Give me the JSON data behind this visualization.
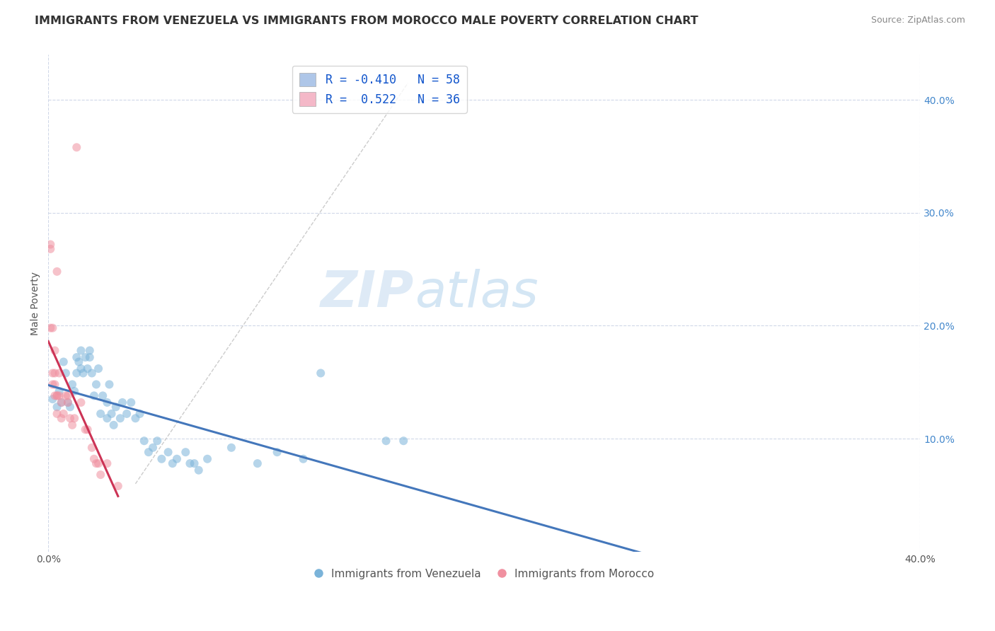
{
  "title": "IMMIGRANTS FROM VENEZUELA VS IMMIGRANTS FROM MOROCCO MALE POVERTY CORRELATION CHART",
  "source": "Source: ZipAtlas.com",
  "ylabel": "Male Poverty",
  "watermark_zip": "ZIP",
  "watermark_atlas": "atlas",
  "legend_entries": [
    {
      "label": "R = -0.410   N = 58",
      "color": "#aec6e8"
    },
    {
      "label": "R =  0.522   N = 36",
      "color": "#f4b8c8"
    }
  ],
  "legend_labels_bottom": [
    "Immigrants from Venezuela",
    "Immigrants from Morocco"
  ],
  "xlim": [
    0.0,
    0.4
  ],
  "ylim": [
    0.0,
    0.44
  ],
  "xticks": [
    0.0,
    0.1,
    0.2,
    0.3,
    0.4
  ],
  "xtick_labels": [
    "0.0%",
    "",
    "",
    "",
    "40.0%"
  ],
  "yticks_right": [
    0.1,
    0.2,
    0.3,
    0.4
  ],
  "ytick_labels_right": [
    "10.0%",
    "20.0%",
    "30.0%",
    "40.0%"
  ],
  "blue_color": "#7ab3d9",
  "pink_color": "#f090a0",
  "trend_blue": "#4477bb",
  "trend_pink": "#cc3355",
  "diag_color": "#cccccc",
  "title_fontsize": 11.5,
  "axis_label_fontsize": 10,
  "tick_fontsize": 10,
  "watermark_fontsize_zip": 52,
  "watermark_fontsize_atlas": 52,
  "background_color": "#ffffff",
  "grid_color": "#d0d8e8",
  "venezuela_scatter": [
    [
      0.002,
      0.135
    ],
    [
      0.004,
      0.128
    ],
    [
      0.005,
      0.142
    ],
    [
      0.006,
      0.132
    ],
    [
      0.007,
      0.168
    ],
    [
      0.008,
      0.158
    ],
    [
      0.009,
      0.132
    ],
    [
      0.01,
      0.128
    ],
    [
      0.011,
      0.148
    ],
    [
      0.012,
      0.142
    ],
    [
      0.013,
      0.158
    ],
    [
      0.013,
      0.172
    ],
    [
      0.014,
      0.168
    ],
    [
      0.015,
      0.178
    ],
    [
      0.015,
      0.162
    ],
    [
      0.016,
      0.158
    ],
    [
      0.017,
      0.172
    ],
    [
      0.018,
      0.162
    ],
    [
      0.019,
      0.172
    ],
    [
      0.019,
      0.178
    ],
    [
      0.02,
      0.158
    ],
    [
      0.021,
      0.138
    ],
    [
      0.022,
      0.148
    ],
    [
      0.023,
      0.162
    ],
    [
      0.024,
      0.122
    ],
    [
      0.025,
      0.138
    ],
    [
      0.027,
      0.132
    ],
    [
      0.027,
      0.118
    ],
    [
      0.028,
      0.148
    ],
    [
      0.029,
      0.122
    ],
    [
      0.03,
      0.112
    ],
    [
      0.031,
      0.128
    ],
    [
      0.033,
      0.118
    ],
    [
      0.034,
      0.132
    ],
    [
      0.036,
      0.122
    ],
    [
      0.038,
      0.132
    ],
    [
      0.04,
      0.118
    ],
    [
      0.042,
      0.122
    ],
    [
      0.044,
      0.098
    ],
    [
      0.046,
      0.088
    ],
    [
      0.048,
      0.092
    ],
    [
      0.05,
      0.098
    ],
    [
      0.052,
      0.082
    ],
    [
      0.055,
      0.088
    ],
    [
      0.057,
      0.078
    ],
    [
      0.059,
      0.082
    ],
    [
      0.063,
      0.088
    ],
    [
      0.065,
      0.078
    ],
    [
      0.067,
      0.078
    ],
    [
      0.069,
      0.072
    ],
    [
      0.073,
      0.082
    ],
    [
      0.084,
      0.092
    ],
    [
      0.096,
      0.078
    ],
    [
      0.105,
      0.088
    ],
    [
      0.117,
      0.082
    ],
    [
      0.125,
      0.158
    ],
    [
      0.155,
      0.098
    ],
    [
      0.163,
      0.098
    ]
  ],
  "morocco_scatter": [
    [
      0.001,
      0.198
    ],
    [
      0.001,
      0.272
    ],
    [
      0.001,
      0.268
    ],
    [
      0.002,
      0.148
    ],
    [
      0.002,
      0.198
    ],
    [
      0.002,
      0.158
    ],
    [
      0.003,
      0.138
    ],
    [
      0.003,
      0.148
    ],
    [
      0.003,
      0.178
    ],
    [
      0.003,
      0.158
    ],
    [
      0.004,
      0.138
    ],
    [
      0.004,
      0.248
    ],
    [
      0.004,
      0.138
    ],
    [
      0.004,
      0.122
    ],
    [
      0.005,
      0.158
    ],
    [
      0.005,
      0.138
    ],
    [
      0.006,
      0.132
    ],
    [
      0.006,
      0.118
    ],
    [
      0.007,
      0.122
    ],
    [
      0.008,
      0.138
    ],
    [
      0.009,
      0.132
    ],
    [
      0.009,
      0.138
    ],
    [
      0.01,
      0.118
    ],
    [
      0.011,
      0.112
    ],
    [
      0.012,
      0.118
    ],
    [
      0.013,
      0.358
    ],
    [
      0.015,
      0.132
    ],
    [
      0.017,
      0.108
    ],
    [
      0.018,
      0.108
    ],
    [
      0.02,
      0.092
    ],
    [
      0.021,
      0.082
    ],
    [
      0.022,
      0.078
    ],
    [
      0.023,
      0.078
    ],
    [
      0.024,
      0.068
    ],
    [
      0.027,
      0.078
    ],
    [
      0.032,
      0.058
    ]
  ]
}
